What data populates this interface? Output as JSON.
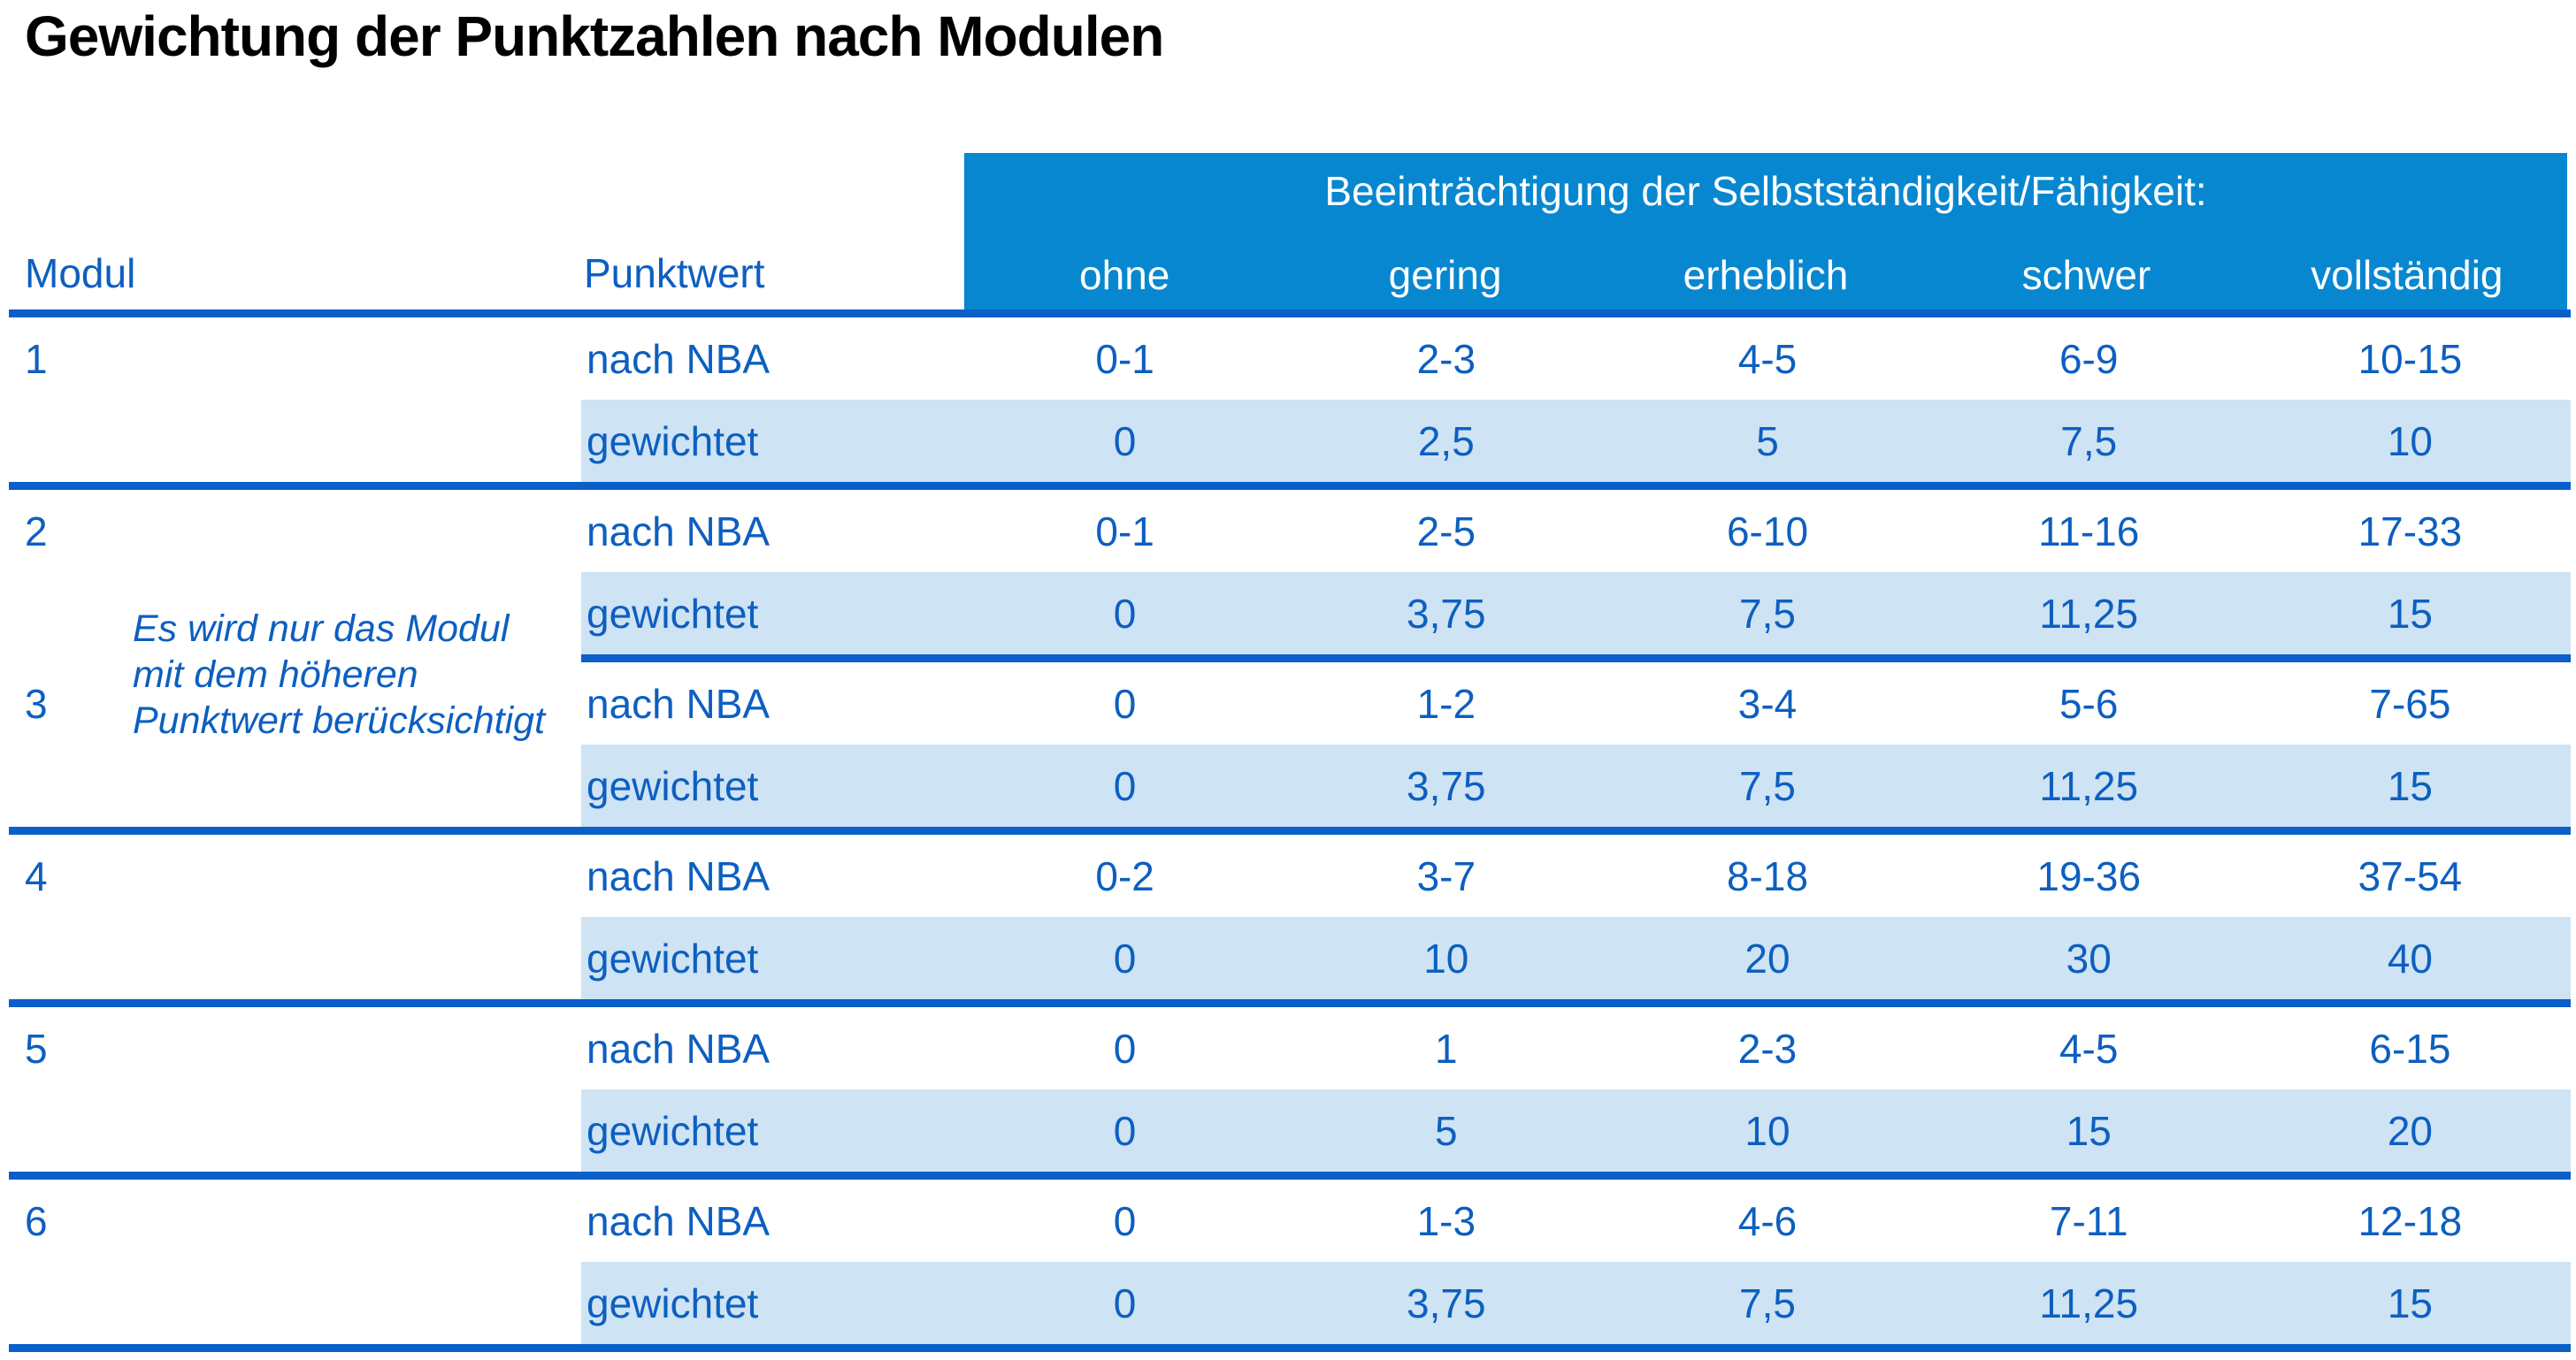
{
  "title": "Gewichtung der Punktzahlen nach Modulen",
  "table": {
    "group_header": "Beeinträchtigung der Selbstständigkeit/Fähigkeit:",
    "col_modul": "Modul",
    "col_punktwert": "Punktwert",
    "severity_levels": [
      "ohne",
      "gering",
      "erheblich",
      "schwer",
      "vollständig"
    ],
    "row_labels": {
      "nach_nba": "nach NBA",
      "gewichtet": "gewichtet"
    },
    "note_lines": [
      "Es wird nur das Modul",
      "mit dem höheren",
      "Punktwert berücksichtigt"
    ],
    "modules": [
      {
        "id": "1",
        "nach_nba": [
          "0-1",
          "2-3",
          "4-5",
          "6-9",
          "10-15"
        ],
        "gewichtet": [
          "0",
          "2,5",
          "5",
          "7,5",
          "10"
        ]
      },
      {
        "id": "2",
        "nach_nba": [
          "0-1",
          "2-5",
          "6-10",
          "11-16",
          "17-33"
        ],
        "gewichtet": [
          "0",
          "3,75",
          "7,5",
          "11,25",
          "15"
        ]
      },
      {
        "id": "3",
        "nach_nba": [
          "0",
          "1-2",
          "3-4",
          "5-6",
          "7-65"
        ],
        "gewichtet": [
          "0",
          "3,75",
          "7,5",
          "11,25",
          "15"
        ]
      },
      {
        "id": "4",
        "nach_nba": [
          "0-2",
          "3-7",
          "8-18",
          "19-36",
          "37-54"
        ],
        "gewichtet": [
          "0",
          "10",
          "20",
          "30",
          "40"
        ]
      },
      {
        "id": "5",
        "nach_nba": [
          "0",
          "1",
          "2-3",
          "4-5",
          "6-15"
        ],
        "gewichtet": [
          "0",
          "5",
          "10",
          "15",
          "20"
        ]
      },
      {
        "id": "6",
        "nach_nba": [
          "0",
          "1-3",
          "4-6",
          "7-11",
          "12-18"
        ],
        "gewichtet": [
          "0",
          "3,75",
          "7,5",
          "11,25",
          "15"
        ]
      }
    ]
  },
  "colors": {
    "header_band": "#0887D1",
    "separator": "#0A5FC8",
    "text_blue": "#0D5FC0",
    "row_shade": "#CEE3F3",
    "title_color": "#000000",
    "page_bg": "#FFFFFF"
  }
}
